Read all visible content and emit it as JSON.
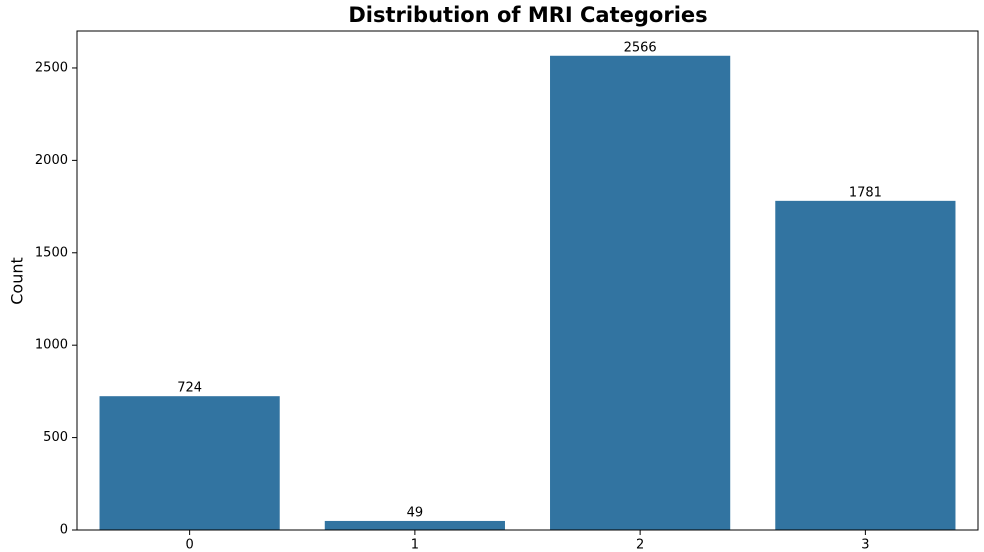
{
  "chart_data": {
    "type": "bar",
    "title": "Distribution of MRI Categories",
    "y_label": "Count",
    "categories": [
      "0",
      "1",
      "2",
      "3"
    ],
    "values": [
      724,
      49,
      2566,
      1781
    ],
    "color": "#3274a1",
    "ylim": [
      0,
      2700
    ],
    "yticks": [
      0,
      500,
      1000,
      1500,
      2000,
      2500
    ],
    "grid": false
  }
}
